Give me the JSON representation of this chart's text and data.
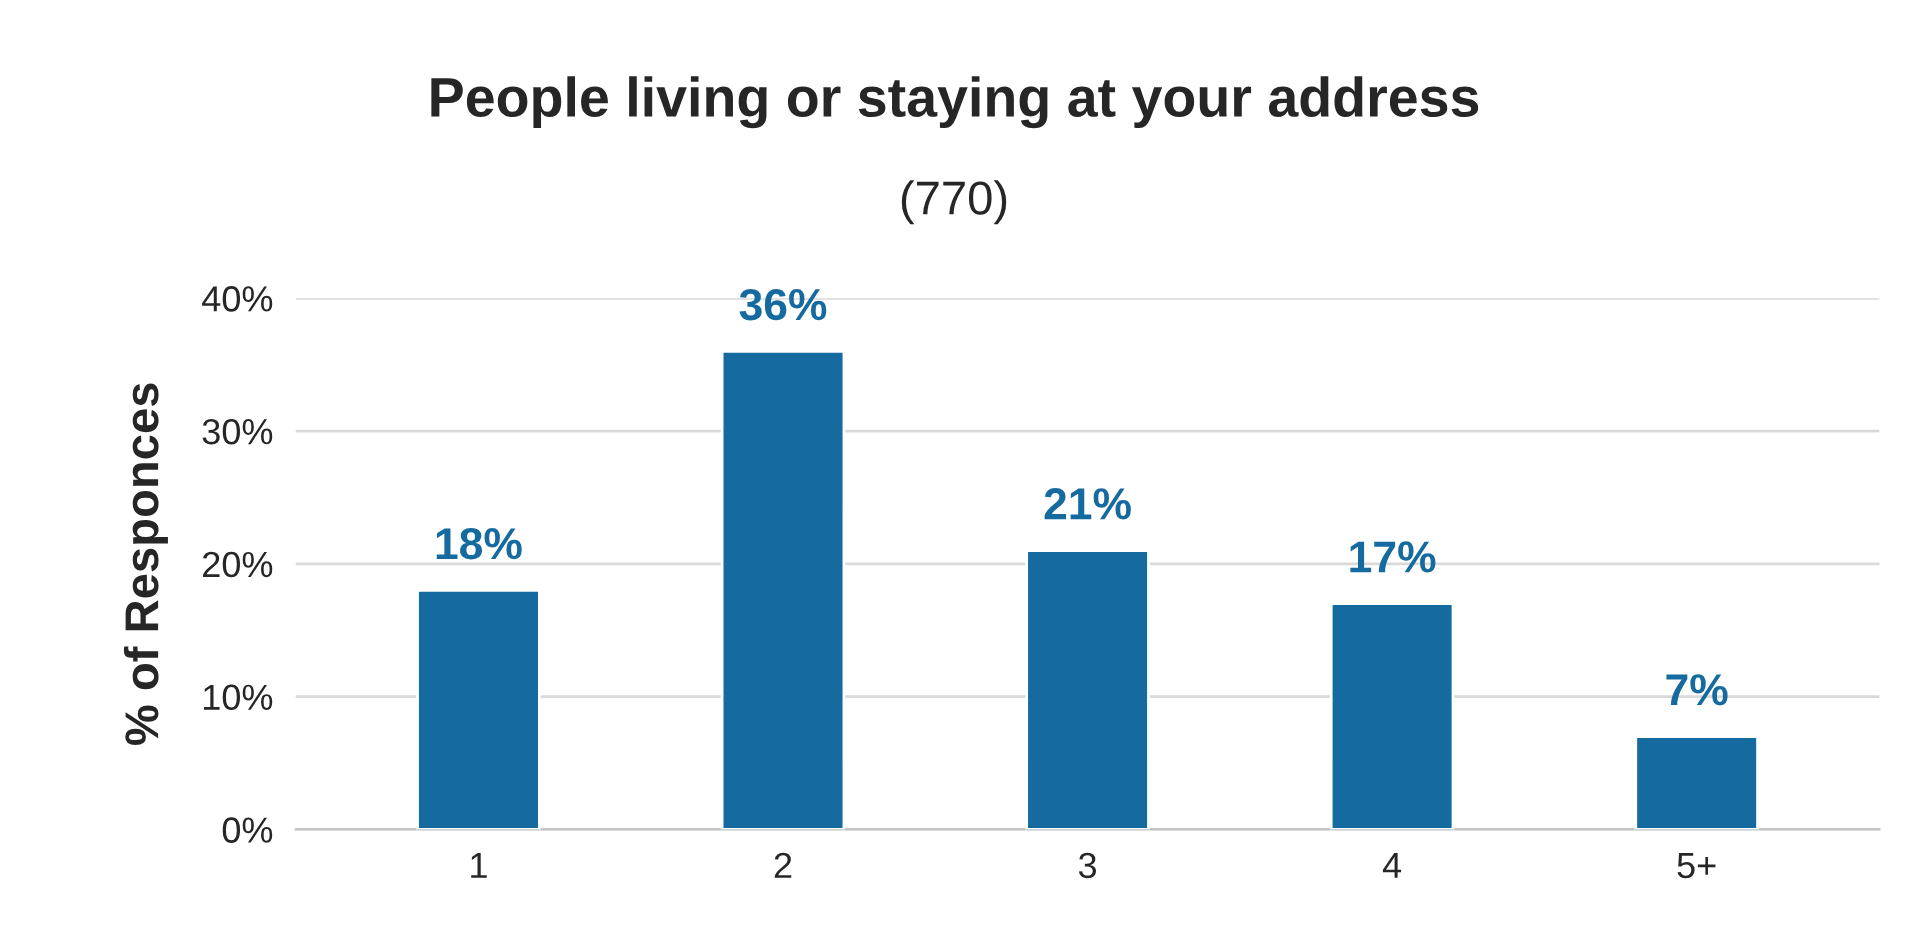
{
  "chart_data": {
    "type": "bar",
    "title": "People living or staying at your address",
    "subtitle": "(770)",
    "ylabel": "% of Responces",
    "categories": [
      "1",
      "2",
      "3",
      "4",
      "5+"
    ],
    "values": [
      18,
      36,
      21,
      17,
      7
    ],
    "value_labels": [
      "18%",
      "36%",
      "21%",
      "17%",
      "7%"
    ],
    "color": "#156aa0",
    "ylim": [
      0,
      40
    ],
    "yticks": [
      {
        "value": 0,
        "label": "0%"
      },
      {
        "value": 10,
        "label": "10%"
      },
      {
        "value": 20,
        "label": "20%"
      },
      {
        "value": 30,
        "label": "30%"
      },
      {
        "value": 40,
        "label": "40%"
      }
    ],
    "grid": "y",
    "legend": false
  }
}
